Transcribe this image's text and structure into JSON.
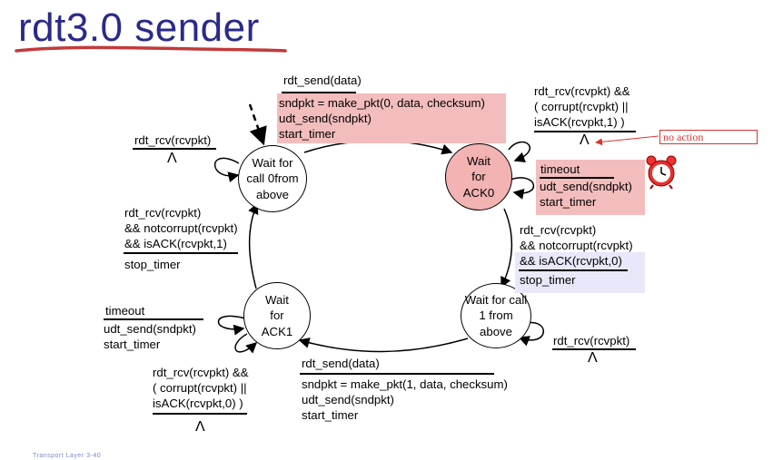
{
  "title": "rdt3.0 sender",
  "states": {
    "s0": "Wait for call 0from above",
    "s1": "Wait for ACK0",
    "s2": "Wait for call 1 from above",
    "s3": "Wait for ACK1"
  },
  "t_send0": {
    "event": "rdt_send(data)",
    "actions": [
      "sndpkt = make_pkt(0, data, checksum)",
      "udt_send(sndpkt)",
      "start_timer"
    ]
  },
  "t_ack0_corrupt": {
    "event": [
      "rdt_rcv(rcvpkt) &&",
      "( corrupt(rcvpkt) ||",
      "isACK(rcvpkt,1) )"
    ],
    "action": "Λ"
  },
  "no_action": "no action",
  "t_ack0_timeout": {
    "event": "timeout",
    "actions": [
      "udt_send(sndpkt)",
      "start_timer"
    ]
  },
  "t_ack0_ok": {
    "event": [
      "rdt_rcv(rcvpkt)",
      "&& notcorrupt(rcvpkt)",
      "&& isACK(rcvpkt,0)"
    ],
    "action": "stop_timer"
  },
  "t_s2_self": {
    "event": "rdt_rcv(rcvpkt)",
    "action": "Λ"
  },
  "t_send1": {
    "event": "rdt_send(data)",
    "actions": [
      "sndpkt = make_pkt(1, data, checksum)",
      "udt_send(sndpkt)",
      "start_timer"
    ]
  },
  "t_ack1_corrupt": {
    "event": [
      "rdt_rcv(rcvpkt) &&",
      "( corrupt(rcvpkt) ||",
      "isACK(rcvpkt,0) )"
    ],
    "action": "Λ"
  },
  "t_ack1_timeout": {
    "event": "timeout",
    "actions": [
      "udt_send(sndpkt)",
      "start_timer"
    ]
  },
  "t_ack1_ok": {
    "event": [
      "rdt_rcv(rcvpkt)",
      "&& notcorrupt(rcvpkt)",
      "&& isACK(rcvpkt,1)"
    ],
    "action": "stop_timer"
  },
  "t_s0_self": {
    "event": "rdt_rcv(rcvpkt)",
    "action": "Λ"
  },
  "colors": {
    "title": "#2a2a8a",
    "highlight_pink": "#f7c6c6",
    "highlight_blue": "#e8e8fa",
    "state_pink": "#f4b3b3",
    "annotation_red": "#d33333"
  },
  "icons": [
    "alarm-clock-icon"
  ],
  "footer": "Transport Layer 3-40"
}
